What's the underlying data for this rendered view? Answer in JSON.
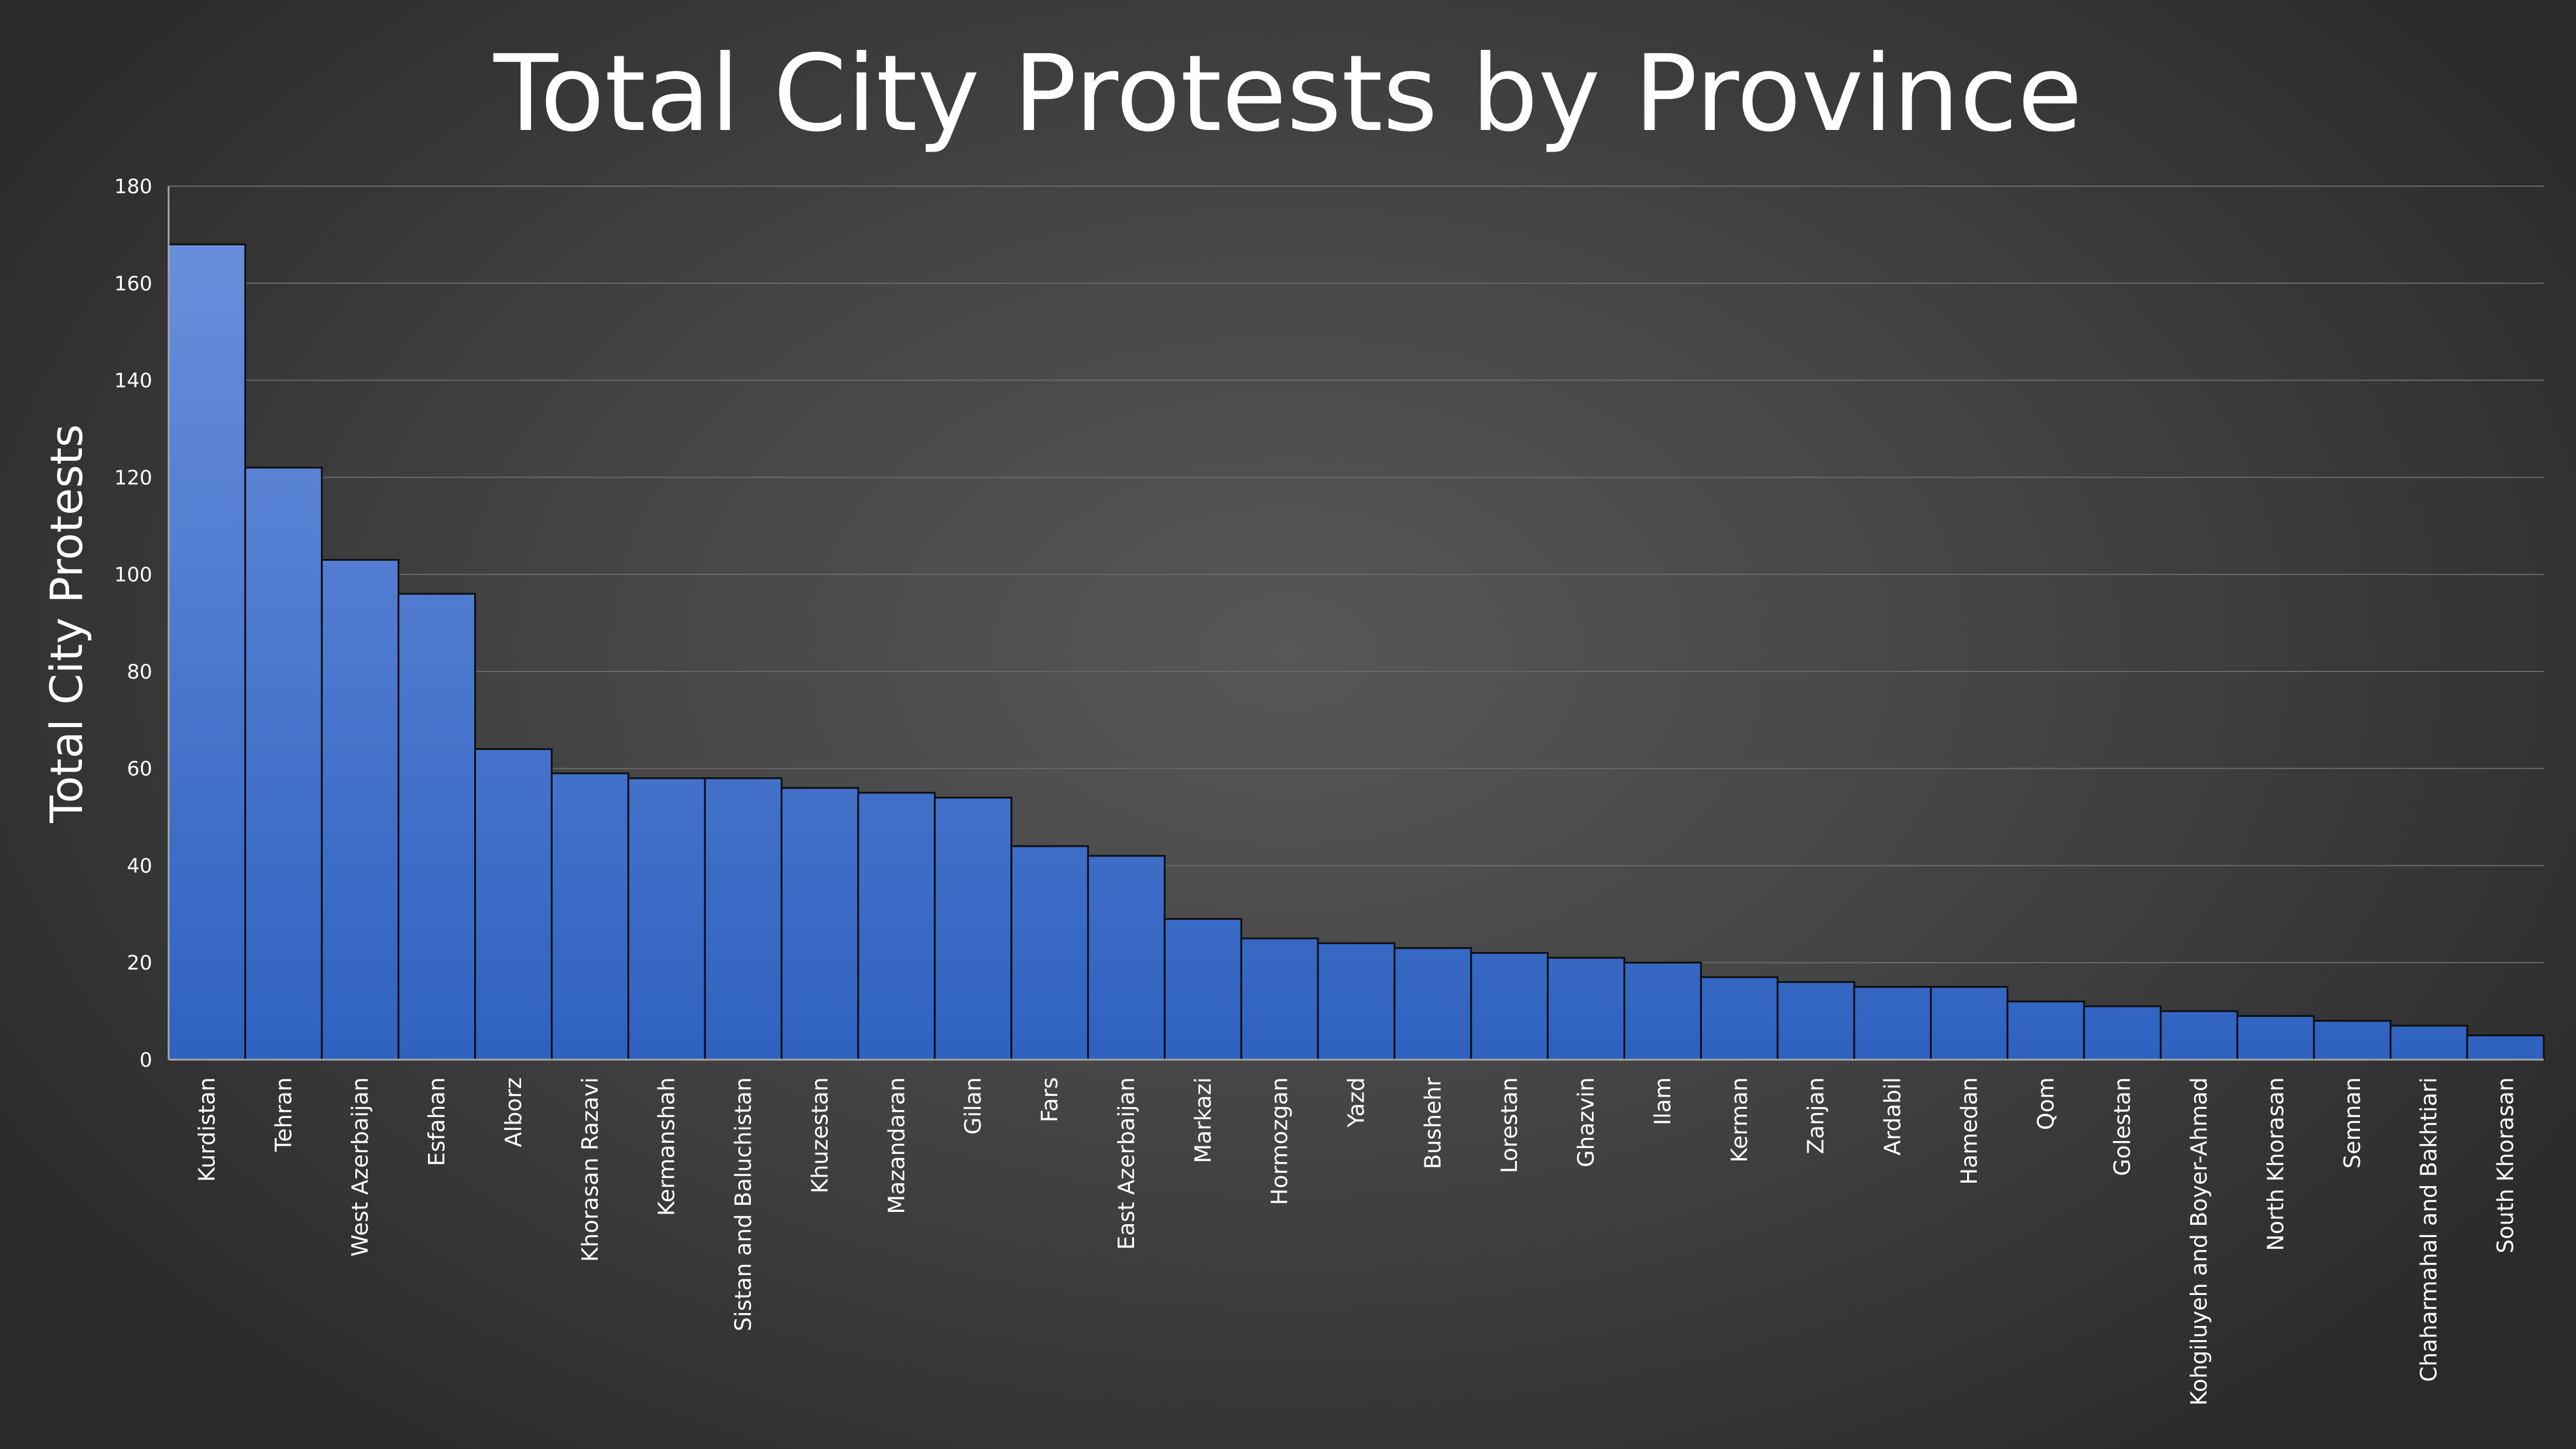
{
  "chart_data": {
    "type": "bar",
    "title": "Total City Protests by Province",
    "xlabel": "",
    "ylabel": "Total City Protests",
    "ylim": [
      0,
      180
    ],
    "yticks": [
      0,
      20,
      40,
      60,
      80,
      100,
      120,
      140,
      160,
      180
    ],
    "grid": true,
    "legend": "none",
    "bar_color_top": "#6a8fdc",
    "bar_color_bottom": "#2f62c0",
    "categories": [
      "Kurdistan",
      "Tehran",
      "West Azerbaijan",
      "Esfahan",
      "Alborz",
      "Khorasan Razavi",
      "Kermanshah",
      "Sistan and Baluchistan",
      "Khuzestan",
      "Mazandaran",
      "Gilan",
      "Fars",
      "East Azerbaijan",
      "Markazi",
      "Hormozgan",
      "Yazd",
      "Bushehr",
      "Lorestan",
      "Ghazvin",
      "Ilam",
      "Kerman",
      "Zanjan",
      "Ardabil",
      "Hamedan",
      "Qom",
      "Golestan",
      "Kohgiluyeh and Boyer-Ahmad",
      "North Khorasan",
      "Semnan",
      "Chaharmahal and Bakhtiari",
      "South Khorasan"
    ],
    "values": [
      168,
      122,
      103,
      96,
      64,
      59,
      58,
      58,
      56,
      55,
      54,
      44,
      42,
      29,
      25,
      24,
      23,
      22,
      21,
      20,
      17,
      16,
      15,
      15,
      12,
      11,
      10,
      9,
      8,
      7,
      5
    ]
  }
}
